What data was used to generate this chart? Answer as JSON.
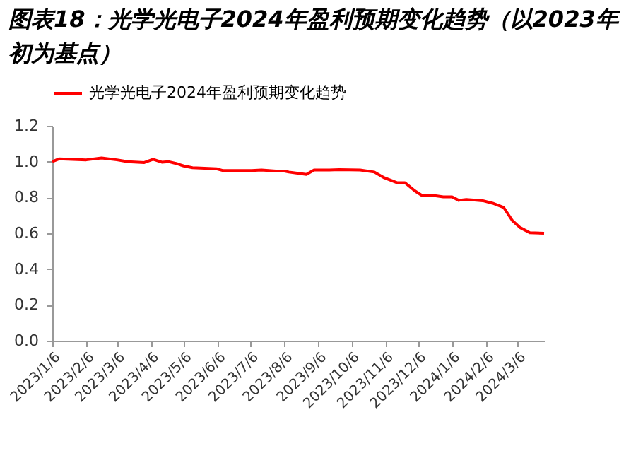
{
  "chart_data": {
    "type": "line",
    "title": "图表18：光学光电子2024年盈利预期变化趋势（以2023年初为基点）",
    "x": [
      "2023-01-06",
      "2023-01-12",
      "2023-02-06",
      "2023-02-20",
      "2023-03-06",
      "2023-03-16",
      "2023-03-31",
      "2023-04-08",
      "2023-04-16",
      "2023-04-22",
      "2023-04-29",
      "2023-05-06",
      "2023-05-14",
      "2023-05-25",
      "2023-06-05",
      "2023-06-11",
      "2023-07-07",
      "2023-07-16",
      "2023-07-29",
      "2023-08-06",
      "2023-08-10",
      "2023-08-26",
      "2023-09-02",
      "2023-09-16",
      "2023-09-25",
      "2023-10-14",
      "2023-10-27",
      "2023-11-05",
      "2023-11-17",
      "2023-11-24",
      "2023-12-03",
      "2023-12-09",
      "2023-12-21",
      "2023-12-29",
      "2024-01-06",
      "2024-01-12",
      "2024-01-19",
      "2024-02-03",
      "2024-02-12",
      "2024-02-22",
      "2024-03-01",
      "2024-03-08",
      "2024-03-17",
      "2024-03-30"
    ],
    "series": [
      {
        "name": "光学光电子2024年盈利预期变化趋势",
        "color": "#ff0000",
        "values": [
          1.0,
          1.015,
          1.01,
          1.02,
          1.01,
          1.0,
          0.995,
          1.013,
          0.997,
          1.0,
          0.99,
          0.976,
          0.966,
          0.963,
          0.96,
          0.95,
          0.95,
          0.953,
          0.947,
          0.947,
          0.942,
          0.929,
          0.953,
          0.953,
          0.955,
          0.953,
          0.942,
          0.91,
          0.882,
          0.882,
          0.837,
          0.813,
          0.81,
          0.803,
          0.803,
          0.784,
          0.789,
          0.782,
          0.768,
          0.745,
          0.671,
          0.632,
          0.603,
          0.6
        ]
      }
    ],
    "xlim": [
      "2023-01-06",
      "2024-03-30"
    ],
    "xticks": [
      {
        "value": "2023-01-06",
        "label": "2023/1/6"
      },
      {
        "value": "2023-02-06",
        "label": "2023/2/6"
      },
      {
        "value": "2023-03-06",
        "label": "2023/3/6"
      },
      {
        "value": "2023-04-06",
        "label": "2023/4/6"
      },
      {
        "value": "2023-05-06",
        "label": "2023/5/6"
      },
      {
        "value": "2023-06-06",
        "label": "2023/6/6"
      },
      {
        "value": "2023-07-06",
        "label": "2023/7/6"
      },
      {
        "value": "2023-08-06",
        "label": "2023/8/6"
      },
      {
        "value": "2023-09-06",
        "label": "2023/9/6"
      },
      {
        "value": "2023-10-06",
        "label": "2023/10/6"
      },
      {
        "value": "2023-11-06",
        "label": "2023/11/6"
      },
      {
        "value": "2023-12-06",
        "label": "2023/12/6"
      },
      {
        "value": "2024-01-06",
        "label": "2024/1/6"
      },
      {
        "value": "2024-02-06",
        "label": "2024/2/6"
      },
      {
        "value": "2024-03-06",
        "label": "2024/3/6"
      }
    ],
    "ylim": [
      0,
      1.2
    ],
    "yticks": [
      {
        "value": 0,
        "label": "0.0"
      },
      {
        "value": 0.2,
        "label": "0.2"
      },
      {
        "value": 0.4,
        "label": "0.4"
      },
      {
        "value": 0.6,
        "label": "0.6"
      },
      {
        "value": 0.8,
        "label": "0.8"
      },
      {
        "value": 1,
        "label": "1.0"
      },
      {
        "value": 1.2,
        "label": "1.2"
      }
    ],
    "legend": "top",
    "marker": "none",
    "line_style": "solid"
  }
}
